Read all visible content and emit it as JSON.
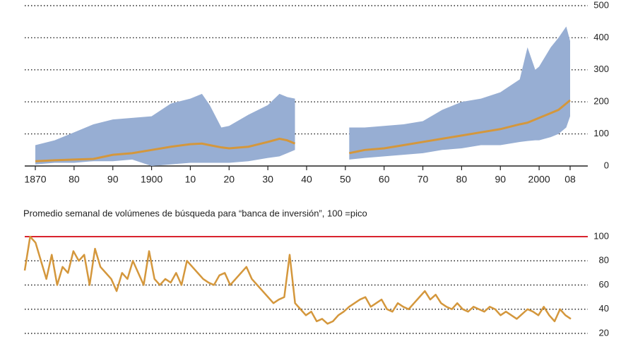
{
  "chart_data": [
    {
      "type": "bandline",
      "x": [
        1870,
        1875,
        1880,
        1885,
        1890,
        1895,
        1900,
        1905,
        1910,
        1913,
        1915,
        1918,
        1920,
        1925,
        1930,
        1933,
        1935,
        1937,
        1944,
        1951,
        1955,
        1960,
        1965,
        1970,
        1975,
        1980,
        1985,
        1990,
        1995,
        1997,
        1999,
        2000,
        2003,
        2005,
        2007,
        2008
      ],
      "values": [
        15,
        18,
        20,
        22,
        35,
        40,
        50,
        60,
        68,
        70,
        65,
        58,
        55,
        60,
        75,
        85,
        80,
        70,
        null,
        40,
        50,
        55,
        65,
        75,
        85,
        95,
        105,
        115,
        130,
        135,
        145,
        150,
        165,
        175,
        195,
        205
      ],
      "band": {
        "low": [
          5,
          10,
          10,
          15,
          15,
          20,
          0,
          5,
          10,
          10,
          10,
          10,
          10,
          15,
          25,
          30,
          40,
          50,
          null,
          20,
          25,
          30,
          35,
          40,
          50,
          55,
          65,
          65,
          75,
          78,
          80,
          80,
          90,
          100,
          120,
          155
        ],
        "high": [
          65,
          80,
          105,
          130,
          145,
          150,
          155,
          195,
          210,
          225,
          190,
          120,
          125,
          160,
          190,
          225,
          215,
          210,
          null,
          120,
          120,
          125,
          130,
          140,
          175,
          200,
          210,
          230,
          270,
          370,
          300,
          310,
          370,
          400,
          435,
          390
        ],
        "color": "#97aed3"
      },
      "color": "#d4973c",
      "xlim": [
        1870,
        2008
      ],
      "xticks": [
        1870,
        {
          "value": 1880,
          "label": "80"
        },
        {
          "value": 1890,
          "label": "90"
        },
        1900,
        {
          "value": 1910,
          "label": "10"
        },
        {
          "value": 1920,
          "label": "20"
        },
        {
          "value": 1930,
          "label": "30"
        },
        {
          "value": 1940,
          "label": "40"
        },
        {
          "value": 1950,
          "label": "50"
        },
        {
          "value": 1960,
          "label": "60"
        },
        {
          "value": 1970,
          "label": "70"
        },
        {
          "value": 1980,
          "label": "80"
        },
        {
          "value": 1990,
          "label": "90"
        },
        2000,
        {
          "value": 2008,
          "label": "08"
        }
      ],
      "ylim": [
        0,
        500
      ],
      "yticks": [
        0,
        100,
        200,
        300,
        400,
        500
      ],
      "grid": true
    },
    {
      "type": "line",
      "subtitle": "Promedio semanal de volúmenes de búsqueda para “banca de inversión”, 100 =pico",
      "values": [
        72,
        100,
        95,
        80,
        65,
        85,
        60,
        75,
        70,
        88,
        80,
        85,
        60,
        90,
        75,
        70,
        65,
        55,
        70,
        65,
        80,
        70,
        60,
        88,
        65,
        60,
        65,
        62,
        70,
        60,
        80,
        75,
        70,
        65,
        62,
        60,
        68,
        70,
        60,
        65,
        70,
        75,
        65,
        60,
        55,
        50,
        45,
        48,
        50,
        85,
        45,
        40,
        35,
        38,
        30,
        32,
        28,
        30,
        35,
        38,
        42,
        45,
        48,
        50,
        42,
        45,
        48,
        40,
        38,
        45,
        42,
        40,
        45,
        50,
        55,
        48,
        52,
        45,
        42,
        40,
        45,
        40,
        38,
        42,
        40,
        38,
        42,
        40,
        35,
        38,
        35,
        32,
        36,
        40,
        38,
        35,
        42,
        35,
        30,
        40,
        35,
        32
      ],
      "color": "#d4973c",
      "ylim": [
        20,
        100
      ],
      "yticks": [
        20,
        40,
        60,
        80,
        100
      ],
      "reference_line": 100,
      "reference_color": "#d9232e",
      "grid": true
    }
  ]
}
